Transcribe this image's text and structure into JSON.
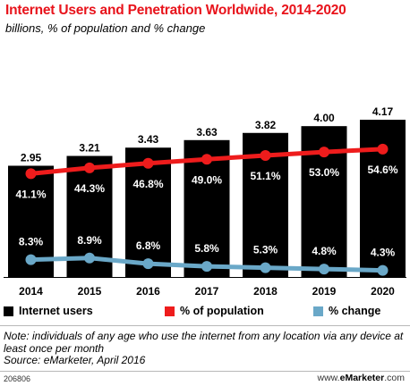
{
  "header": {
    "title": "Internet Users and Penetration Worldwide, 2014-2020",
    "subtitle": "billions, % of population and % change"
  },
  "colors": {
    "bars": "#000000",
    "population_line": "#ee1c1c",
    "change_line": "#6aa8c8",
    "title": "#e8131b"
  },
  "chart_data": {
    "type": "bar",
    "categories": [
      "2014",
      "2015",
      "2016",
      "2017",
      "2018",
      "2019",
      "2020"
    ],
    "series": [
      {
        "name": "Internet users",
        "type": "bar",
        "values": [
          2.95,
          3.21,
          3.43,
          3.63,
          3.82,
          4.0,
          4.17
        ],
        "labels": [
          "2.95",
          "3.21",
          "3.43",
          "3.63",
          "3.82",
          "4.00",
          "4.17"
        ]
      },
      {
        "name": "% of population",
        "type": "line",
        "values": [
          41.1,
          44.3,
          46.8,
          49.0,
          51.1,
          53.0,
          54.6
        ],
        "labels": [
          "41.1%",
          "44.3%",
          "46.8%",
          "49.0%",
          "51.1%",
          "53.0%",
          "54.6%"
        ]
      },
      {
        "name": "% change",
        "type": "line",
        "values": [
          8.3,
          8.9,
          6.8,
          5.8,
          5.3,
          4.8,
          4.3
        ],
        "labels": [
          "8.3%",
          "8.9%",
          "6.8%",
          "5.8%",
          "5.3%",
          "4.8%",
          "4.3%"
        ]
      }
    ],
    "xlabel": "",
    "ylabel": "",
    "legend": "bottom",
    "grid": false
  },
  "legend": {
    "items": [
      "Internet users",
      "% of population",
      "% change"
    ]
  },
  "footer": {
    "note": "Note: individuals of any age who use the internet from any location via any device at least once per month",
    "source": "Source: eMarketer, April 2016",
    "id": "206806",
    "brand_prefix": "www.",
    "brand_name": "eMarketer",
    "brand_suffix": ".com"
  }
}
